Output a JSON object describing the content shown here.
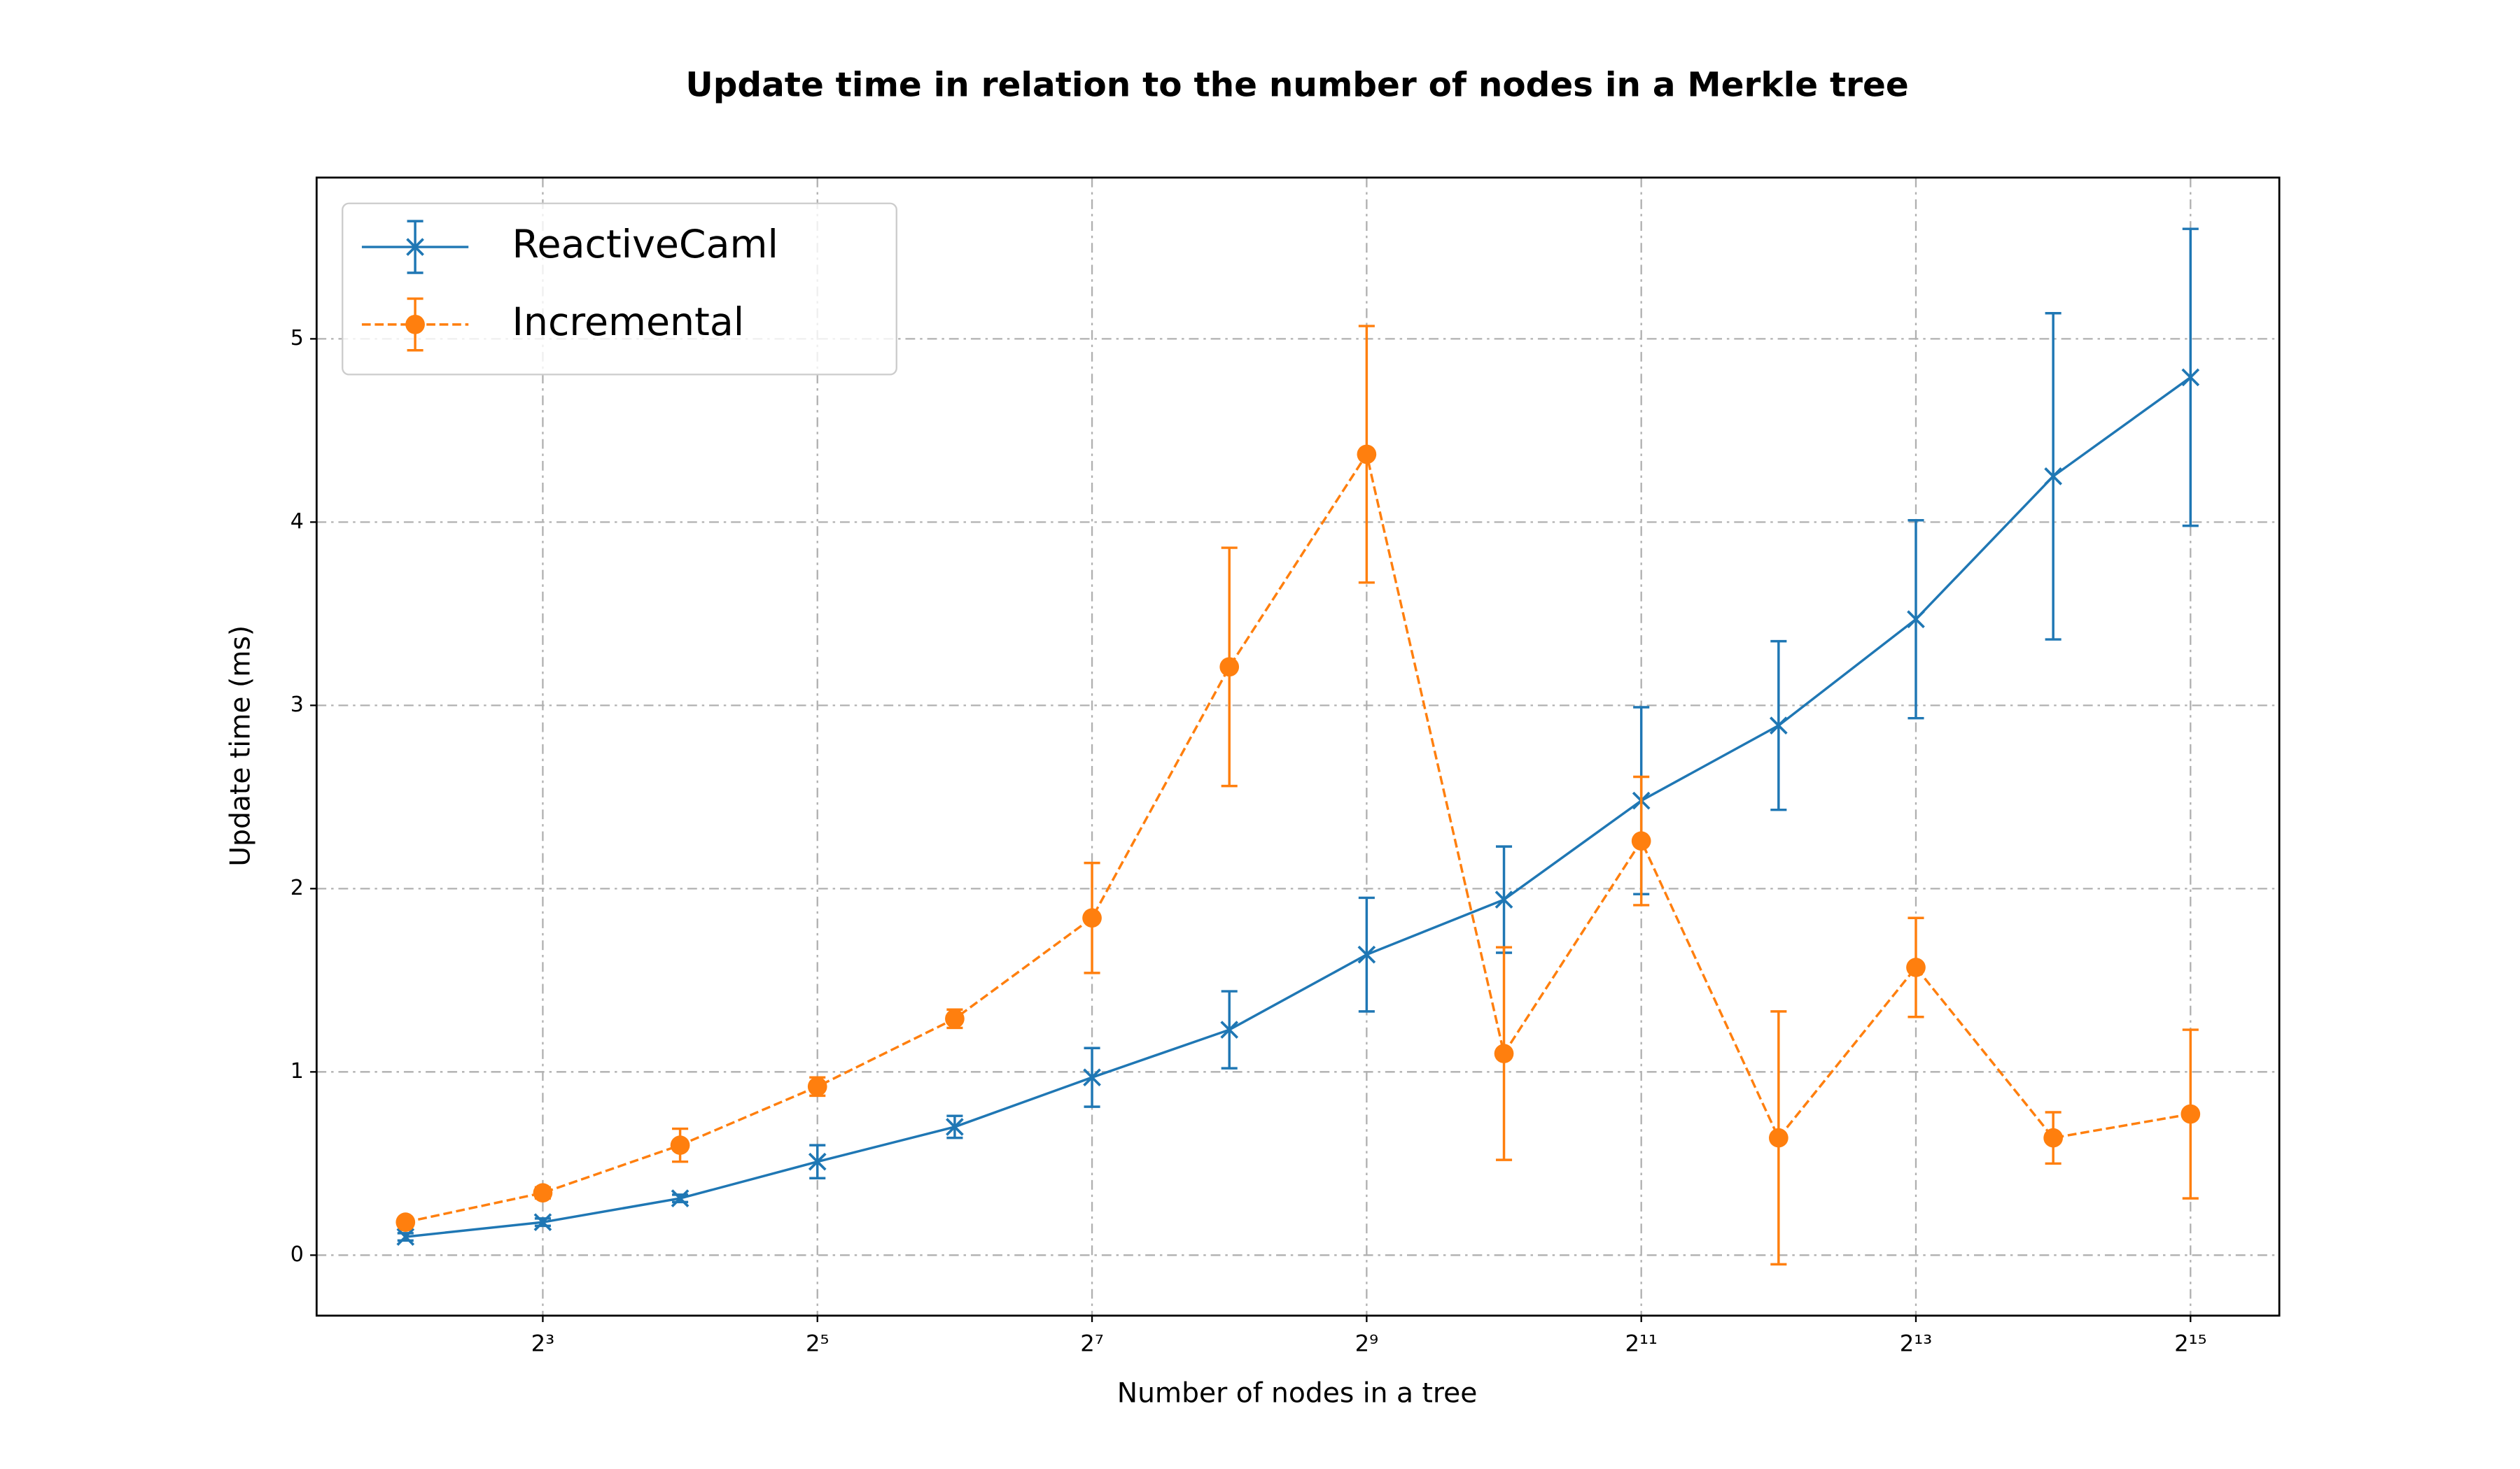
{
  "chart_data": {
    "type": "line",
    "title": "Update time in relation to the number of nodes in a Merkle tree",
    "x_label": "Number of nodes in a tree",
    "y_label": "Update time (ms)",
    "x": [
      4,
      8,
      16,
      32,
      64,
      128,
      256,
      512,
      1024,
      2048,
      4096,
      8192,
      16384,
      32768
    ],
    "series": [
      {
        "name": "ReactiveCaml",
        "color": "#1f77b4",
        "marker": "x",
        "dash": "solid",
        "values": [
          0.1,
          0.18,
          0.31,
          0.51,
          0.7,
          0.97,
          1.23,
          1.64,
          1.94,
          2.48,
          2.89,
          3.47,
          4.25,
          4.79
        ],
        "errors": [
          0.02,
          0.02,
          0.02,
          0.09,
          0.06,
          0.16,
          0.21,
          0.31,
          0.29,
          0.51,
          0.46,
          0.54,
          0.89,
          0.81
        ]
      },
      {
        "name": "Incremental",
        "color": "#ff7f0e",
        "marker": "o",
        "dash": "dashed",
        "values": [
          0.18,
          0.34,
          0.6,
          0.92,
          1.29,
          1.84,
          3.21,
          4.37,
          1.1,
          2.26,
          0.64,
          1.57,
          0.64,
          0.77
        ],
        "errors": [
          0.02,
          0.03,
          0.09,
          0.05,
          0.05,
          0.3,
          0.65,
          0.7,
          0.58,
          0.35,
          0.69,
          0.27,
          0.14,
          0.46
        ]
      }
    ],
    "xscale": "log2",
    "xlim": [
      2.554,
      51300
    ],
    "xticks": [
      {
        "value": 8,
        "label": "2³"
      },
      {
        "value": 32,
        "label": "2⁵"
      },
      {
        "value": 128,
        "label": "2⁷"
      },
      {
        "value": 512,
        "label": "2⁹"
      },
      {
        "value": 2048,
        "label": "2¹¹"
      },
      {
        "value": 8192,
        "label": "2¹³"
      },
      {
        "value": 32768,
        "label": "2¹⁵"
      }
    ],
    "ylim": [
      -0.33,
      5.88
    ],
    "yticks": [
      0,
      1,
      2,
      3,
      4,
      5
    ],
    "grid": true,
    "legend": "upper left"
  }
}
